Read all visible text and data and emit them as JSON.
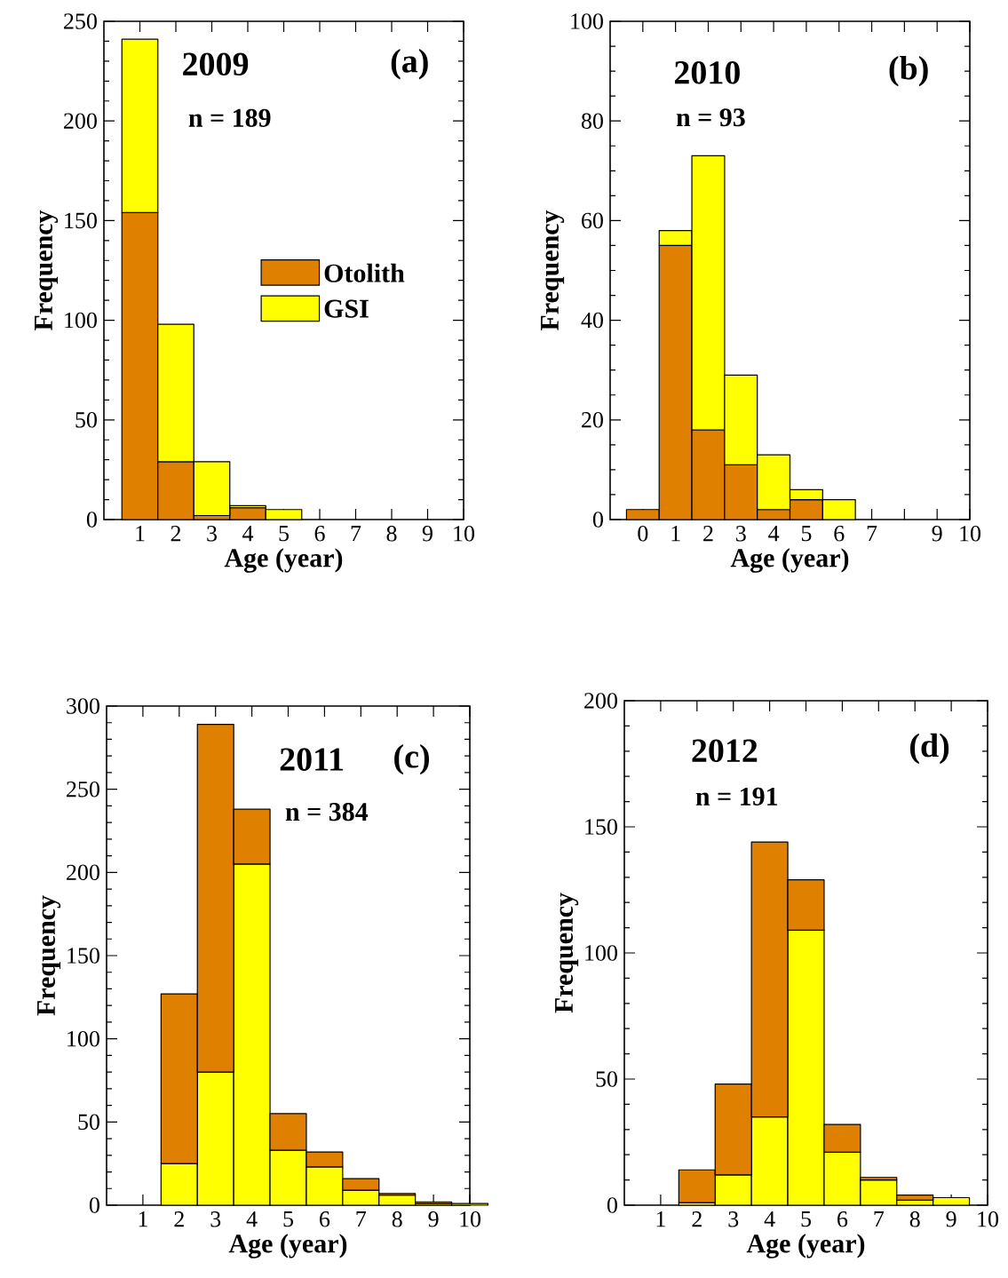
{
  "chart_data": [
    {
      "type": "bar",
      "stacked": true,
      "title": "2009",
      "subtitle": "n = 189",
      "annotations": [
        "(a)"
      ],
      "xlabel": "Age (year)",
      "ylabel": "Frequency",
      "xlim": [
        0,
        10
      ],
      "xticks": [
        1,
        2,
        3,
        4,
        5,
        6,
        7,
        8,
        9,
        10
      ],
      "ylim": [
        0,
        250
      ],
      "yticks": [
        0,
        50,
        100,
        150,
        200,
        250
      ],
      "legend": "right",
      "x": [
        1,
        2,
        3,
        4,
        5
      ],
      "series": [
        {
          "name": "Otolith",
          "color": "#e08000",
          "values": [
            154,
            29,
            2,
            6,
            null
          ]
        },
        {
          "name": "GSI",
          "color": "#ffff00",
          "values": [
            87,
            69,
            27,
            1,
            5
          ]
        }
      ]
    },
    {
      "type": "bar",
      "stacked": true,
      "title": "2010",
      "subtitle": "n = 93",
      "annotations": [
        "(b)"
      ],
      "xlabel": "Age (year)",
      "ylabel": "Frequency",
      "xlim": [
        -1,
        10
      ],
      "xticks": [
        0,
        1,
        2,
        3,
        4,
        5,
        6,
        7,
        {
          "value": 8,
          "label": null
        },
        9,
        10
      ],
      "ylim": [
        0,
        100
      ],
      "yticks": [
        0,
        20,
        40,
        60,
        80,
        100
      ],
      "x": [
        0,
        1,
        2,
        3,
        4,
        5,
        6
      ],
      "series": [
        {
          "color": "#e08000",
          "values": [
            2,
            55,
            18,
            11,
            2,
            4,
            null
          ]
        },
        {
          "color": "#ffff00",
          "values": [
            null,
            3,
            55,
            18,
            11,
            2,
            4
          ]
        }
      ]
    },
    {
      "type": "bar",
      "stacked": true,
      "title": "2011",
      "subtitle": "n = 384",
      "annotations": [
        "(c)"
      ],
      "xlabel": "Age (year)",
      "ylabel": "Frequency",
      "xlim": [
        0,
        10
      ],
      "xticks": [
        1,
        2,
        3,
        4,
        5,
        6,
        7,
        8,
        9,
        10
      ],
      "ylim": [
        0,
        300
      ],
      "yticks": [
        0,
        50,
        100,
        150,
        200,
        250,
        300
      ],
      "x": [
        2,
        3,
        4,
        5,
        6,
        7,
        8,
        9,
        10
      ],
      "series": [
        {
          "color": "#ffff00",
          "values": [
            25,
            80,
            205,
            33,
            23,
            9,
            6,
            1,
            1
          ]
        },
        {
          "color": "#e08000",
          "values": [
            102,
            209,
            33,
            22,
            9,
            7,
            1,
            1,
            null
          ]
        }
      ]
    },
    {
      "type": "bar",
      "stacked": true,
      "title": "2012",
      "subtitle": "n = 191",
      "annotations": [
        "(d)"
      ],
      "xlabel": "Age (year)",
      "ylabel": "Frequency",
      "xlim": [
        0,
        10
      ],
      "xticks": [
        1,
        2,
        3,
        4,
        5,
        6,
        7,
        8,
        9,
        10
      ],
      "ylim": [
        0,
        200
      ],
      "yticks": [
        0,
        50,
        100,
        150,
        200
      ],
      "x": [
        2,
        3,
        4,
        5,
        6,
        7,
        8,
        9
      ],
      "series": [
        {
          "color": "#ffff00",
          "values": [
            1,
            12,
            35,
            109,
            21,
            10,
            2,
            3
          ]
        },
        {
          "color": "#e08000",
          "values": [
            13,
            36,
            109,
            20,
            11,
            1,
            2,
            null
          ]
        }
      ]
    }
  ]
}
